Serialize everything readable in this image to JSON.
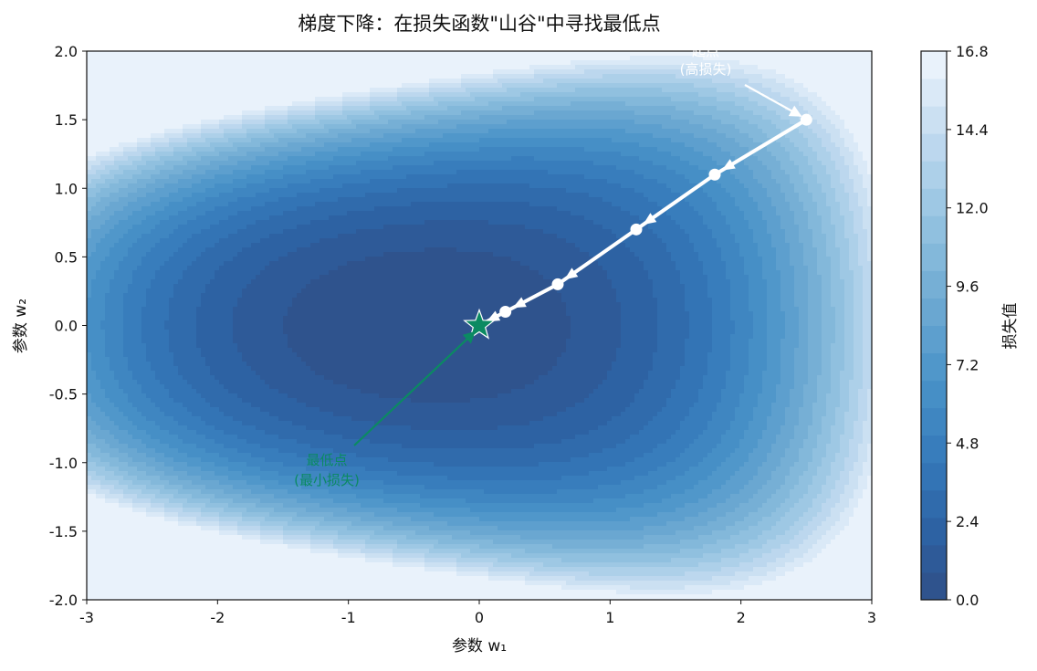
{
  "chart_data": {
    "type": "contour",
    "title": "梯度下降：在损失函数\"山谷\"中寻找最低点",
    "xlabel": "参数 w₁",
    "ylabel": "参数 w₂",
    "xlim": [
      -3,
      3
    ],
    "ylim": [
      -2,
      2
    ],
    "xticks": [
      "-3",
      "-2",
      "-1",
      "0",
      "1",
      "2",
      "3"
    ],
    "yticks": [
      "2.0",
      "1.5",
      "1.0",
      "0.5",
      "0.0",
      "-0.5",
      "-1.0",
      "-1.5",
      "-2.0"
    ],
    "colorbar": {
      "label": "损失值",
      "range": [
        0.0,
        16.8
      ],
      "ticks": [
        "16.8",
        "14.4",
        "12.0",
        "9.6",
        "7.2",
        "4.8",
        "2.4",
        "0.0"
      ],
      "levels": 20,
      "colormap": "Blues_r"
    },
    "path": {
      "name": "gradient descent path",
      "color": "#ffffff",
      "x": [
        2.5,
        1.8,
        1.2,
        0.6,
        0.2,
        0.0
      ],
      "y": [
        1.5,
        1.1,
        0.7,
        0.3,
        0.1,
        0.0
      ]
    },
    "start_point": {
      "x": 2.5,
      "y": 1.5,
      "label": "起点\n(高损失)",
      "color": "#ffffff"
    },
    "minimum_point": {
      "x": 0.0,
      "y": 0.0,
      "label": "最低点\n(最小损失)",
      "color": "#0b8a62"
    },
    "grid": false
  }
}
